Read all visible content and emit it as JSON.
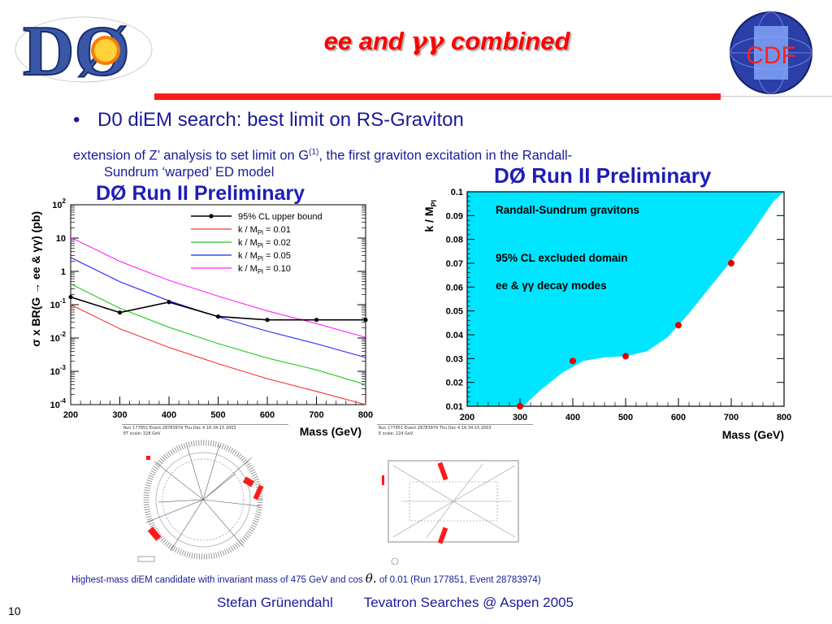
{
  "slide": {
    "title_prefix": "ee and ",
    "title_symbol": "γγ",
    "title_suffix": " combined",
    "bullet": "D0 diEM search: best limit on RS-Graviton",
    "subtext_line1_pre": "extension of Z’ analysis to set limit on G",
    "subtext_sup": "(1)",
    "subtext_line1_post": ", the first graviton excitation in the Randall-",
    "subtext_line2": "Sundrum ‘warped’ ED model",
    "caption_pre": "Highest-mass diEM candidate with invariant mass of 475 GeV and cos",
    "caption_theta": "θ.",
    "caption_post": "of 0.01 (Run 177851, Event 28783974)",
    "footer_author": "Stefan Grünendahl",
    "footer_talk": "Tevatron Searches @ Aspen 2005",
    "page_number": "10",
    "accent_color": "#ff0000",
    "text_color": "#1a1a9a",
    "logo_left": "DØ",
    "logo_right": "CDF"
  },
  "events": {
    "left_header": "Run 177851 Event 28783974 Thu Dec  4 16:34:15 2003",
    "left_scale": "ET scale: 228 GeV",
    "right_header": "Run 177851 Event 28783974 Thu Dec  4 16:34:15 2003",
    "right_scale": "E scale: 224 GeV"
  },
  "chart_data": [
    {
      "type": "line",
      "title": "DØ Run II Preliminary",
      "xlabel": "Mass (GeV)",
      "ylabel": "σ x BR(G → ee & γγ) (pb)",
      "xlim": [
        200,
        800
      ],
      "ylim_log10": [
        -4,
        2
      ],
      "yscale": "log",
      "x_ticks": [
        "200",
        "300",
        "400",
        "500",
        "600",
        "700",
        "800"
      ],
      "y_ticks": [
        "10",
        "10",
        "10",
        "1",
        "10",
        "10",
        "10"
      ],
      "y_tick_exponents": [
        "-4",
        "-3",
        "-2",
        "",
        "",
        "2",
        "-1"
      ],
      "y_tick_values": [
        -4,
        -3,
        -2,
        0,
        1,
        2,
        -1
      ],
      "legend_position": "top-right",
      "series": [
        {
          "name": "95% CL upper bound",
          "legend_sub": "",
          "legend_post": "",
          "color": "#000000",
          "markers": true,
          "x": [
            200,
            300,
            400,
            500,
            600,
            700,
            800
          ],
          "y": [
            0.17,
            0.058,
            0.12,
            0.044,
            0.035,
            0.035,
            0.035
          ]
        },
        {
          "name": "k / M",
          "legend_sub": "Pl",
          "legend_post": " = 0.01",
          "color": "#ff3030",
          "markers": false,
          "x": [
            200,
            300,
            400,
            500,
            600,
            700,
            800
          ],
          "y": [
            0.1,
            0.019,
            0.0052,
            0.0017,
            0.0006,
            0.00025,
            0.0001
          ]
        },
        {
          "name": "k / M",
          "legend_sub": "Pl",
          "legend_post": " = 0.02",
          "color": "#22cc22",
          "markers": false,
          "x": [
            200,
            300,
            400,
            500,
            600,
            700,
            800
          ],
          "y": [
            0.42,
            0.078,
            0.021,
            0.0068,
            0.0025,
            0.0011,
            0.0004
          ]
        },
        {
          "name": "k / M",
          "legend_sub": "Pl",
          "legend_post": " = 0.05",
          "color": "#2222ff",
          "markers": false,
          "x": [
            200,
            300,
            400,
            500,
            600,
            700,
            800
          ],
          "y": [
            2.6,
            0.49,
            0.13,
            0.043,
            0.016,
            0.0067,
            0.0026
          ]
        },
        {
          "name": "k / M",
          "legend_sub": "Pl",
          "legend_post": " = 0.10",
          "color": "#ff22ff",
          "markers": false,
          "x": [
            200,
            300,
            400,
            500,
            600,
            700,
            800
          ],
          "y": [
            10.5,
            2.0,
            0.54,
            0.18,
            0.065,
            0.027,
            0.0105
          ]
        }
      ]
    },
    {
      "type": "area",
      "title": "DØ Run II Preliminary",
      "xlabel": "Mass (GeV)",
      "ylabel": "k / M",
      "ylabel_sub": "Pl",
      "xlim": [
        200,
        800
      ],
      "ylim": [
        0.01,
        0.1
      ],
      "x_ticks": [
        "200",
        "300",
        "400",
        "500",
        "600",
        "700",
        "800"
      ],
      "y_ticks": [
        "0.01",
        "0.02",
        "0.03",
        "0.04",
        "0.05",
        "0.06",
        "0.07",
        "0.08",
        "0.09",
        "0.1"
      ],
      "fill_color": "#00e5ff",
      "annotations": [
        "Randall-Sundrum gravitons",
        "95% CL excluded domain",
        "ee & γγ decay modes"
      ],
      "boundary": {
        "x": [
          306,
          340,
          380,
          420,
          460,
          500,
          540,
          580,
          620,
          660,
          700,
          740,
          780,
          800
        ],
        "y": [
          0.01,
          0.017,
          0.024,
          0.029,
          0.0305,
          0.031,
          0.033,
          0.039,
          0.049,
          0.06,
          0.071,
          0.083,
          0.096,
          0.1
        ]
      },
      "points": {
        "x": [
          300,
          400,
          500,
          600,
          700
        ],
        "y": [
          0.01,
          0.029,
          0.031,
          0.044,
          0.07
        ],
        "color": "#e00000"
      }
    }
  ]
}
